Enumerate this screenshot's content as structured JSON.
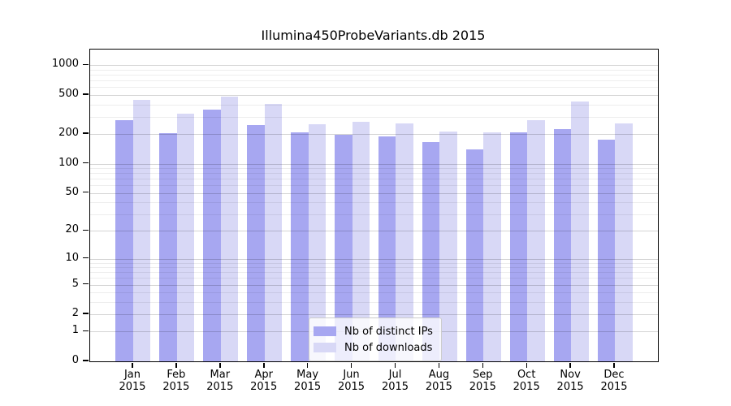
{
  "figure": {
    "title": "Illumina450ProbeVariants.db 2015"
  },
  "chart_data": {
    "type": "bar",
    "title": "Illumina450ProbeVariants.db 2015",
    "categories": [
      "Jan 2015",
      "Feb 2015",
      "Mar 2015",
      "Apr 2015",
      "May 2015",
      "Jun 2015",
      "Jul 2015",
      "Aug 2015",
      "Sep 2015",
      "Oct 2015",
      "Nov 2015",
      "Dec 2015"
    ],
    "x_tick_month_labels": [
      "Jan",
      "Feb",
      "Mar",
      "Apr",
      "May",
      "Jun",
      "Jul",
      "Aug",
      "Sep",
      "Oct",
      "Nov",
      "Dec"
    ],
    "x_tick_year_label": "2015",
    "series": [
      {
        "name": "Nb of distinct IPs",
        "color": "#a7a7f1",
        "values": [
          280,
          206,
          352,
          249,
          208,
          196,
          188,
          165,
          139,
          209,
          226,
          177
        ]
      },
      {
        "name": "Nb of downloads",
        "color": "#d8d8f6",
        "values": [
          448,
          326,
          484,
          404,
          251,
          268,
          256,
          214,
          210,
          280,
          430,
          255
        ]
      }
    ],
    "y_scale": "log1p",
    "y_ticks": [
      0,
      1,
      2,
      5,
      10,
      20,
      50,
      100,
      200,
      500,
      1000
    ],
    "y_minor_ticks": [
      3,
      4,
      6,
      7,
      8,
      9,
      30,
      40,
      60,
      70,
      80,
      90,
      300,
      400,
      600,
      700,
      800,
      900
    ],
    "ylim": [
      0,
      1446
    ],
    "xlabel": "",
    "ylabel": "",
    "grid": true,
    "legend_position": "inside-bottom-center"
  },
  "style": {
    "major_grid_color": "rgba(0,0,0,0.17)",
    "minor_grid_color": "rgba(0,0,0,0.07)",
    "spine_color": "#000000",
    "background_color": "#ffffff"
  }
}
